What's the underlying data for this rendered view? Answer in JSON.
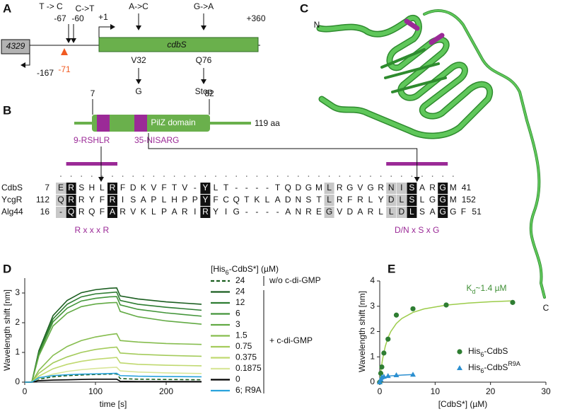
{
  "panel_a": {
    "label": "A",
    "upstream_gene": "4329",
    "upstream_start": "-167",
    "marker": "-71",
    "gene": "cdbS",
    "start": "+1",
    "end": "+360",
    "mutations": [
      {
        "change": "T -> C",
        "position": "-67"
      },
      {
        "change": "C->T",
        "position": "-60"
      },
      {
        "change": "A->C",
        "residue": "V32",
        "result": "G"
      },
      {
        "change": "G->A",
        "residue": "Q76",
        "result": "Stop"
      }
    ]
  },
  "panel_b": {
    "label": "B",
    "domain_start": "7",
    "domain_end": "82",
    "domain": "PilZ domain",
    "length": "119 aa",
    "motif_1": "9-RSHLR",
    "motif_2": "35-NISARG",
    "alignment": [
      {
        "name": "CdbS",
        "start": "7",
        "sequence": "ERSHLRFDKVFTV-YLT----TQDGMLRGVGRNISARGM",
        "end": "41"
      },
      {
        "name": "YcgR",
        "start": "112",
        "sequence": "QRRYFRISAPLHPPYFCQTKLADNSTLRFRLYDLSLGGM",
        "end": "152"
      },
      {
        "name": "Alg44",
        "start": "16",
        "sequence": "-QRQFARVKLPARIRYIG----ANREGVDARLLDLSAGGF",
        "end": "51"
      }
    ],
    "consensus_1": "R x x x R",
    "consensus_2": "D/N x S x G"
  },
  "panel_c": {
    "label": "C",
    "n_terminus": "N",
    "c_terminus": "C"
  },
  "chart_data": [
    {
      "type": "line",
      "label": "D",
      "x_label": "time [s]",
      "y_label": "Wavelength shift [nm]",
      "legend_title": [
        "[His",
        "6",
        "-CdbS*] (µM)"
      ],
      "annotations": [
        "w/o c-di-GMP",
        "+ c-di-GMP"
      ],
      "x": [
        0,
        10,
        20,
        40,
        60,
        80,
        100,
        120,
        130,
        135,
        160,
        200,
        250
      ],
      "xlim": [
        0,
        250
      ],
      "xticks": [
        0,
        100,
        200
      ],
      "ylim": [
        0,
        3.5
      ],
      "yticks": [
        0,
        1,
        2,
        3
      ],
      "series": [
        {
          "name": "24",
          "color": "#1b5e20",
          "dashed": true,
          "values": [
            0,
            0,
            0.1,
            0.18,
            0.22,
            0.24,
            0.26,
            0.27,
            0.28,
            0.12,
            0.1,
            0.09,
            0.08
          ]
        },
        {
          "name": "24",
          "color": "#1b5e20",
          "values": [
            0,
            0,
            1.06,
            2.24,
            2.75,
            3.01,
            3.11,
            3.16,
            3.17,
            2.9,
            2.8,
            2.7,
            2.62
          ]
        },
        {
          "name": "12",
          "color": "#2e7d32",
          "values": [
            0,
            0,
            1.0,
            2.13,
            2.62,
            2.87,
            2.97,
            3.01,
            3.03,
            2.75,
            2.62,
            2.52,
            2.42
          ]
        },
        {
          "name": "6",
          "color": "#43953a",
          "values": [
            0,
            0,
            0.95,
            2.03,
            2.49,
            2.73,
            2.82,
            2.87,
            2.88,
            2.6,
            2.45,
            2.33,
            2.22
          ]
        },
        {
          "name": "3",
          "color": "#62aa44",
          "values": [
            0,
            0,
            0.89,
            1.89,
            2.32,
            2.54,
            2.63,
            2.67,
            2.68,
            2.38,
            2.2,
            2.06,
            1.95
          ]
        },
        {
          "name": "1.5",
          "color": "#86bd4e",
          "values": [
            0,
            0,
            0.4,
            0.9,
            1.2,
            1.4,
            1.52,
            1.6,
            1.63,
            1.4,
            1.35,
            1.3,
            1.27
          ]
        },
        {
          "name": "0.75",
          "color": "#a4cb5b",
          "values": [
            0,
            0,
            0.3,
            0.65,
            0.85,
            1.0,
            1.1,
            1.16,
            1.18,
            0.98,
            0.94,
            0.9,
            0.87
          ]
        },
        {
          "name": "0.375",
          "color": "#c0d970",
          "values": [
            0,
            0,
            0.2,
            0.45,
            0.6,
            0.7,
            0.77,
            0.81,
            0.83,
            0.65,
            0.6,
            0.57,
            0.55
          ]
        },
        {
          "name": "0.1875",
          "color": "#d9e69a",
          "values": [
            0,
            0,
            0.12,
            0.27,
            0.36,
            0.42,
            0.46,
            0.49,
            0.5,
            0.38,
            0.34,
            0.31,
            0.29
          ]
        },
        {
          "name": "0",
          "color": "#000000",
          "values": [
            0,
            0,
            0.05,
            0.07,
            0.08,
            0.09,
            0.1,
            0.1,
            0.1,
            0.03,
            0.02,
            0.02,
            0.02
          ]
        },
        {
          "name": "6; R9A",
          "color": "#29a3dc",
          "values": [
            0,
            0,
            0.15,
            0.22,
            0.25,
            0.27,
            0.28,
            0.29,
            0.3,
            0.22,
            0.2,
            0.19,
            0.18
          ]
        }
      ]
    },
    {
      "type": "scatter",
      "label": "E",
      "x_label": "[CdbS*] (µM)",
      "y_label": "Wavelength shift [nm]",
      "annotation": [
        "K",
        "d",
        "~1.4 µM"
      ],
      "annotation_color": "#3f8f35",
      "xlim": [
        0,
        30
      ],
      "xticks": [
        0,
        10,
        20,
        30
      ],
      "ylim": [
        0,
        4
      ],
      "yticks": [
        0,
        1,
        2,
        3,
        4
      ],
      "series": [
        {
          "name": [
            "His",
            "6",
            "-CdbS"
          ],
          "color": "#2e7d32",
          "marker": "circle",
          "x": [
            0,
            0.1875,
            0.375,
            0.75,
            1.5,
            3,
            6,
            12,
            24
          ],
          "values": [
            0,
            0.35,
            0.6,
            1.15,
            1.7,
            2.65,
            2.9,
            3.05,
            3.15
          ],
          "fit": {
            "color": "#9ccc4a",
            "x": [
              0,
              0.25,
              0.5,
              1,
              1.5,
              2,
              3,
              4,
              6,
              8,
              12,
              16,
              20,
              24
            ],
            "values": [
              0,
              0.515,
              0.895,
              1.417,
              1.759,
              2.0,
              2.318,
              2.519,
              2.757,
              2.894,
              3.045,
              3.126,
              3.178,
              3.214
            ]
          }
        },
        {
          "name": [
            "His",
            "6",
            "-CdbS",
            "R9A"
          ],
          "color": "#2b8fd0",
          "marker": "triangle",
          "x": [
            0,
            0.1875,
            0.375,
            0.75,
            1.5,
            3,
            6
          ],
          "values": [
            0,
            0.1,
            0.2,
            0.22,
            0.25,
            0.28,
            0.3
          ],
          "fit": {
            "color": "#2b8fd0",
            "x": [
              0,
              1,
              2,
              4,
              6
            ],
            "values": [
              0,
              0.2,
              0.25,
              0.28,
              0.3
            ]
          }
        }
      ]
    }
  ]
}
